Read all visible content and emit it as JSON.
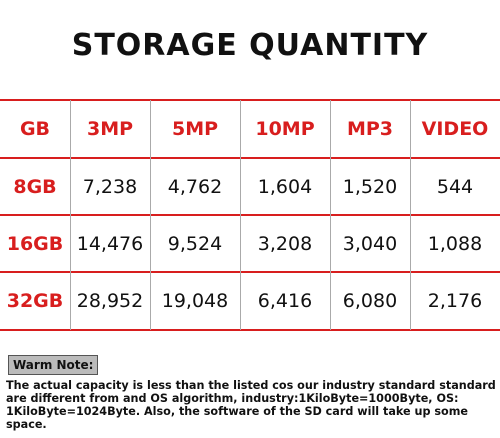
{
  "header": {
    "title": "STORAGE QUANTITY"
  },
  "table": {
    "columns": [
      "GB",
      "3MP",
      "5MP",
      "10MP",
      "MP3",
      "VIDEO"
    ],
    "rows": [
      [
        "8GB",
        "7,238",
        "4,762",
        "1,604",
        "1,520",
        "544"
      ],
      [
        "16GB",
        "14,476",
        "9,524",
        "3,208",
        "3,040",
        "1,088"
      ],
      [
        "32GB",
        "28,952",
        "19,048",
        "6,416",
        "6,080",
        "2,176"
      ]
    ]
  },
  "note": {
    "label": "Warm Note:",
    "text": "The actual capacity is less than the listed cos our industry standard standard are different from and OS algorithm, industry:1KiloByte=1000Byte, OS: 1KiloByte=1024Byte. Also, the software of the SD card will take up some space."
  }
}
